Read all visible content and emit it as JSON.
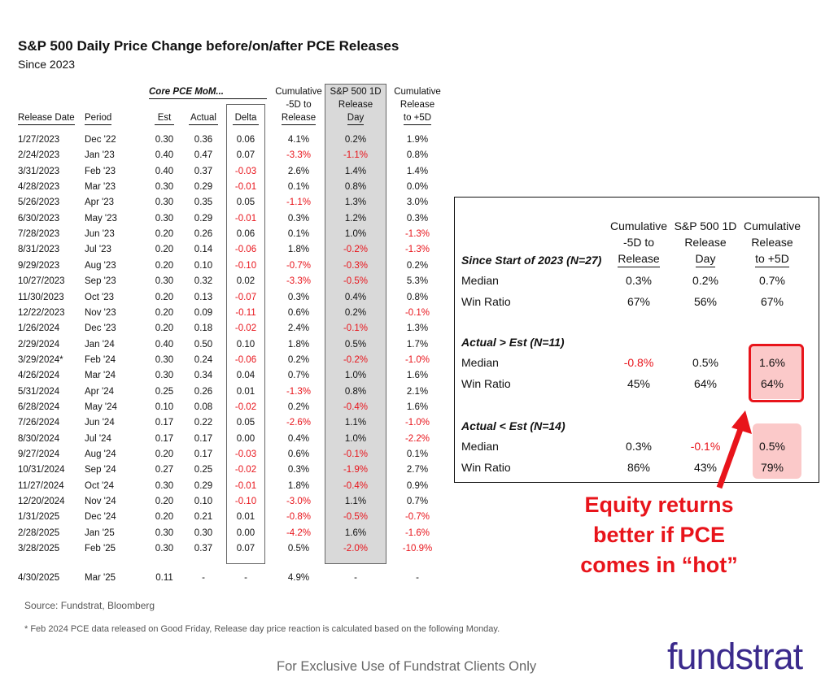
{
  "title": "S&P 500 Daily Price Change before/on/after PCE Releases",
  "subtitle": "Since 2023",
  "table": {
    "group_header": "Core PCE MoM...",
    "headers": {
      "release_date": "Release Date",
      "period": "Period",
      "est": "Est",
      "actual": "Actual",
      "delta": "Delta",
      "cum_before": [
        "Cumulative",
        "-5D to",
        "Release"
      ],
      "release_day": [
        "S&P 500 1D",
        "Release",
        "Day"
      ],
      "cum_after": [
        "Cumulative",
        "Release",
        "to +5D"
      ]
    },
    "rows": [
      [
        "1/27/2023",
        "Dec '22",
        "0.30",
        "0.36",
        "0.06",
        "4.1%",
        "0.2%",
        "1.9%"
      ],
      [
        "2/24/2023",
        "Jan '23",
        "0.40",
        "0.47",
        "0.07",
        "-3.3%",
        "-1.1%",
        "0.8%"
      ],
      [
        "3/31/2023",
        "Feb '23",
        "0.40",
        "0.37",
        "-0.03",
        "2.6%",
        "1.4%",
        "1.4%"
      ],
      [
        "4/28/2023",
        "Mar '23",
        "0.30",
        "0.29",
        "-0.01",
        "0.1%",
        "0.8%",
        "0.0%"
      ],
      [
        "5/26/2023",
        "Apr '23",
        "0.30",
        "0.35",
        "0.05",
        "-1.1%",
        "1.3%",
        "3.0%"
      ],
      [
        "6/30/2023",
        "May '23",
        "0.30",
        "0.29",
        "-0.01",
        "0.3%",
        "1.2%",
        "0.3%"
      ],
      [
        "7/28/2023",
        "Jun '23",
        "0.20",
        "0.26",
        "0.06",
        "0.1%",
        "1.0%",
        "-1.3%"
      ],
      [
        "8/31/2023",
        "Jul '23",
        "0.20",
        "0.14",
        "-0.06",
        "1.8%",
        "-0.2%",
        "-1.3%"
      ],
      [
        "9/29/2023",
        "Aug '23",
        "0.20",
        "0.10",
        "-0.10",
        "-0.7%",
        "-0.3%",
        "0.2%"
      ],
      [
        "10/27/2023",
        "Sep '23",
        "0.30",
        "0.32",
        "0.02",
        "-3.3%",
        "-0.5%",
        "5.3%"
      ],
      [
        "11/30/2023",
        "Oct '23",
        "0.20",
        "0.13",
        "-0.07",
        "0.3%",
        "0.4%",
        "0.8%"
      ],
      [
        "12/22/2023",
        "Nov '23",
        "0.20",
        "0.09",
        "-0.11",
        "0.6%",
        "0.2%",
        "-0.1%"
      ],
      [
        "1/26/2024",
        "Dec '23",
        "0.20",
        "0.18",
        "-0.02",
        "2.4%",
        "-0.1%",
        "1.3%"
      ],
      [
        "2/29/2024",
        "Jan '24",
        "0.40",
        "0.50",
        "0.10",
        "1.8%",
        "0.5%",
        "1.7%"
      ],
      [
        "3/29/2024*",
        "Feb '24",
        "0.30",
        "0.24",
        "-0.06",
        "0.2%",
        "-0.2%",
        "-1.0%"
      ],
      [
        "4/26/2024",
        "Mar '24",
        "0.30",
        "0.34",
        "0.04",
        "0.7%",
        "1.0%",
        "1.6%"
      ],
      [
        "5/31/2024",
        "Apr '24",
        "0.25",
        "0.26",
        "0.01",
        "-1.3%",
        "0.8%",
        "2.1%"
      ],
      [
        "6/28/2024",
        "May '24",
        "0.10",
        "0.08",
        "-0.02",
        "0.2%",
        "-0.4%",
        "1.6%"
      ],
      [
        "7/26/2024",
        "Jun '24",
        "0.17",
        "0.22",
        "0.05",
        "-2.6%",
        "1.1%",
        "-1.0%"
      ],
      [
        "8/30/2024",
        "Jul '24",
        "0.17",
        "0.17",
        "0.00",
        "0.4%",
        "1.0%",
        "-2.2%"
      ],
      [
        "9/27/2024",
        "Aug '24",
        "0.20",
        "0.17",
        "-0.03",
        "0.6%",
        "-0.1%",
        "0.1%"
      ],
      [
        "10/31/2024",
        "Sep '24",
        "0.27",
        "0.25",
        "-0.02",
        "0.3%",
        "-1.9%",
        "2.7%"
      ],
      [
        "11/27/2024",
        "Oct '24",
        "0.30",
        "0.29",
        "-0.01",
        "1.8%",
        "-0.4%",
        "0.9%"
      ],
      [
        "12/20/2024",
        "Nov '24",
        "0.20",
        "0.10",
        "-0.10",
        "-3.0%",
        "1.1%",
        "0.7%"
      ],
      [
        "1/31/2025",
        "Dec '24",
        "0.20",
        "0.21",
        "0.01",
        "-0.8%",
        "-0.5%",
        "-0.7%"
      ],
      [
        "2/28/2025",
        "Jan '25",
        "0.30",
        "0.30",
        "0.00",
        "-4.2%",
        "1.6%",
        "-1.6%"
      ],
      [
        "3/28/2025",
        "Feb '25",
        "0.30",
        "0.37",
        "0.07",
        "0.5%",
        "-2.0%",
        "-10.9%"
      ]
    ],
    "pending_row": [
      "4/30/2025",
      "Mar '25",
      "0.11",
      "-",
      "-",
      "4.9%",
      "-",
      "-"
    ]
  },
  "summary": {
    "headers": {
      "cum_before": [
        "Cumulative",
        "-5D to",
        "Release"
      ],
      "release_day": [
        "S&P 500 1D",
        "Release",
        "Day"
      ],
      "cum_after": [
        "Cumulative",
        "Release",
        "to +5D"
      ]
    },
    "sections": [
      {
        "title": "Since Start of 2023 (N=27)",
        "rows": [
          {
            "label": "Median",
            "values": [
              "0.3%",
              "0.2%",
              "0.7%"
            ]
          },
          {
            "label": "Win Ratio",
            "values": [
              "67%",
              "56%",
              "67%"
            ]
          }
        ]
      },
      {
        "title": "Actual > Est (N=11)",
        "rows": [
          {
            "label": "Median",
            "values": [
              "-0.8%",
              "0.5%",
              "1.6%"
            ]
          },
          {
            "label": "Win Ratio",
            "values": [
              "45%",
              "64%",
              "64%"
            ]
          }
        ]
      },
      {
        "title": "Actual < Est (N=14)",
        "rows": [
          {
            "label": "Median",
            "values": [
              "0.3%",
              "-0.1%",
              "0.5%"
            ]
          },
          {
            "label": "Win Ratio",
            "values": [
              "86%",
              "43%",
              "79%"
            ]
          }
        ]
      }
    ]
  },
  "callout": [
    "Equity returns",
    "better if PCE",
    "comes in “hot”"
  ],
  "source": "Source: Fundstrat, Bloomberg",
  "footnote": "* Feb 2024 PCE data released on Good Friday, Release day price reaction is calculated based on the following Monday.",
  "exclusive": "For Exclusive Use of Fundstrat Clients Only",
  "logo": "fundstrat",
  "colors": {
    "negative": "#e8141b",
    "highlight": "#fbc9c9",
    "logo": "#3b2a8c",
    "callout": "#e8141b"
  }
}
